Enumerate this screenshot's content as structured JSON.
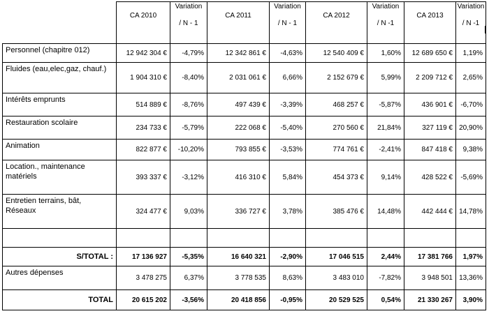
{
  "header": {
    "ca2010": "CA 2010",
    "ca2011": "CA 2011",
    "ca2012": "CA 2012",
    "ca2013": "CA 2013",
    "var_line1": "Variation",
    "var_line2_a": "/ N - 1",
    "var_line2_b": "/ N -1"
  },
  "rows": [
    {
      "label": "Personnel (chapitre 012)",
      "v2010": "12 942 304 €",
      "p2010": "-4,79%",
      "v2011": "12 342 861 €",
      "p2011": "-4,63%",
      "v2012": "12 540 409 €",
      "p2012": "1,60%",
      "v2013": "12 689 650 €",
      "p2013": "1,19%"
    },
    {
      "label": "Fluides (eau,elec,gaz, chauf.)",
      "v2010": "1 904 310 €",
      "p2010": "-8,40%",
      "v2011": "2 031 061 €",
      "p2011": "6,66%",
      "v2012": "2 152 679 €",
      "p2012": "5,99%",
      "v2013": "2 209 712 €",
      "p2013": "2,65%"
    },
    {
      "label": "Intérêts emprunts",
      "v2010": "514 889 €",
      "p2010": "-8,76%",
      "v2011": "497 439 €",
      "p2011": "-3,39%",
      "v2012": "468 257 €",
      "p2012": "-5,87%",
      "v2013": "436 901 €",
      "p2013": "-6,70%"
    },
    {
      "label": "Restauration scolaire",
      "v2010": "234 733 €",
      "p2010": "-5,79%",
      "v2011": "222 068 €",
      "p2011": "-5,40%",
      "v2012": "270 560 €",
      "p2012": "21,84%",
      "v2013": "327 119 €",
      "p2013": "20,90%"
    },
    {
      "label": "Animation",
      "v2010": "822 877 €",
      "p2010": "-10,20%",
      "v2011": "793 855 €",
      "p2011": "-3,53%",
      "v2012": "774 761 €",
      "p2012": "-2,41%",
      "v2013": "847 418 €",
      "p2013": "9,38%"
    },
    {
      "label": "Location., maintenance matériels",
      "v2010": "393 337 €",
      "p2010": "-3,12%",
      "v2011": "416 310 €",
      "p2011": "5,84%",
      "v2012": "454 373 €",
      "p2012": "9,14%",
      "v2013": "428 522 €",
      "p2013": "-5,69%"
    },
    {
      "label": "Entretien terrains, bât, Réseaux",
      "v2010": "324 477 €",
      "p2010": "9,03%",
      "v2011": "336 727 €",
      "p2011": "3,78%",
      "v2012": "385 476 €",
      "p2012": "14,48%",
      "v2013": "442 444 €",
      "p2013": "14,78%"
    }
  ],
  "subtotal": {
    "label": "S/TOTAL :",
    "v2010": "17 136 927",
    "p2010": "-5,35%",
    "v2011": "16 640 321",
    "p2011": "-2,90%",
    "v2012": "17 046 515",
    "p2012": "2,44%",
    "v2013": "17 381 766",
    "p2013": "1,97%"
  },
  "autres": {
    "label": "Autres dépenses",
    "v2010": "3 478 275",
    "p2010": "6,37%",
    "v2011": "3 778 535",
    "p2011": "8,63%",
    "v2012": "3 483 010",
    "p2012": "-7,82%",
    "v2013": "3 948 501",
    "p2013": "13,36%"
  },
  "total": {
    "label": "TOTAL",
    "v2010": "20 615 202",
    "p2010": "-3,56%",
    "v2011": "20 418 856",
    "p2011": "-0,95%",
    "v2012": "20 529 525",
    "p2012": "0,54%",
    "v2013": "21 330 267",
    "p2013": "3,90%"
  }
}
